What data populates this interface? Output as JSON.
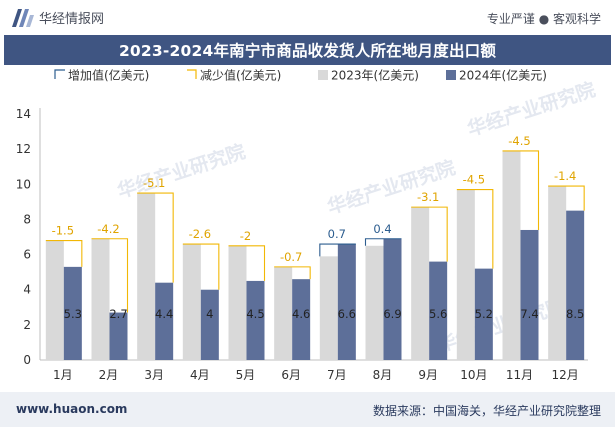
{
  "header": {
    "brand": "华经情报网",
    "tagline": "专业严谨 ● 客观科学",
    "title": "2023-2024年南宁市商品收发货人所在地月度出口额"
  },
  "footer": {
    "website": "www.huaon.com",
    "source": "数据来源：中国海关，华经产业研究院整理"
  },
  "watermark": "华经产业研究院",
  "colors": {
    "bar2023": "#d9d9d9",
    "bar2024": "#5d6f99",
    "increase": "#2c5d8f",
    "decrease": "#f2b705",
    "title_bg": "#3f5582"
  },
  "chart_data": {
    "type": "bar",
    "title": "2023-2024年南宁市商品收发货人所在地月度出口额",
    "categories": [
      "1月",
      "2月",
      "3月",
      "4月",
      "5月",
      "6月",
      "7月",
      "8月",
      "9月",
      "10月",
      "11月",
      "12月"
    ],
    "series": [
      {
        "name": "2023年(亿美元)",
        "values": [
          6.8,
          6.9,
          9.5,
          6.6,
          6.5,
          5.3,
          5.9,
          6.5,
          8.7,
          9.7,
          11.9,
          9.9
        ]
      },
      {
        "name": "2024年(亿美元)",
        "values": [
          5.3,
          2.7,
          4.4,
          4.0,
          4.5,
          4.6,
          6.6,
          6.9,
          5.6,
          5.2,
          7.4,
          8.5
        ]
      }
    ],
    "change": [
      -1.5,
      -4.2,
      -5.1,
      -2.6,
      -2,
      -0.7,
      0.7,
      0.4,
      -3.1,
      -4.5,
      -4.5,
      -1.4
    ],
    "change_labels": [
      "-1.5",
      "-4.2",
      "-5.1",
      "-2.6",
      "-2",
      "-0.7",
      "0.7",
      "0.4",
      "-3.1",
      "-4.5",
      "-4.5",
      "-1.4"
    ],
    "value_labels_2024": [
      "5.3",
      "2.7",
      "4.4",
      "4",
      "4.5",
      "4.6",
      "6.6",
      "6.9",
      "5.6",
      "5.2",
      "7.4",
      "8.5"
    ],
    "legend": [
      "增加值(亿美元)",
      "减少值(亿美元)",
      "2023年(亿美元)",
      "2024年(亿美元)"
    ],
    "yticks": [
      "0",
      "2",
      "4",
      "6",
      "8",
      "10",
      "12",
      "14"
    ],
    "ylim": [
      0,
      14
    ],
    "legend_position": "top",
    "grid": false
  }
}
